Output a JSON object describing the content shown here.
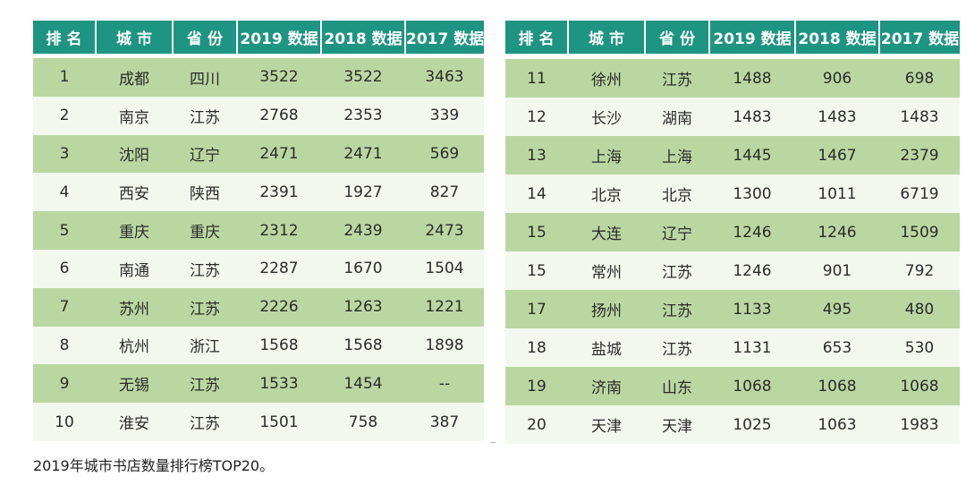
{
  "headers": [
    "排 名",
    "城 市",
    "省 份",
    "2019 数据",
    "2018 数据",
    "2017 数据"
  ],
  "left_rows": [
    [
      "1",
      "成都",
      "四川",
      "3522",
      "3522",
      "3463"
    ],
    [
      "2",
      "南京",
      "江苏",
      "2768",
      "2353",
      "339"
    ],
    [
      "3",
      "沈阳",
      "辽宁",
      "2471",
      "2471",
      "569"
    ],
    [
      "4",
      "西安",
      "陕西",
      "2391",
      "1927",
      "827"
    ],
    [
      "5",
      "重庆",
      "重庆",
      "2312",
      "2439",
      "2473"
    ],
    [
      "6",
      "南通",
      "江苏",
      "2287",
      "1670",
      "1504"
    ],
    [
      "7",
      "苏州",
      "江苏",
      "2226",
      "1263",
      "1221"
    ],
    [
      "8",
      "杭州",
      "浙江",
      "1568",
      "1568",
      "1898"
    ],
    [
      "9",
      "无锡",
      "江苏",
      "1533",
      "1454",
      "--"
    ],
    [
      "10",
      "淮安",
      "江苏",
      "1501",
      "758",
      "387"
    ]
  ],
  "right_rows": [
    [
      "11",
      "徐州",
      "江苏",
      "1488",
      "906",
      "698"
    ],
    [
      "12",
      "长沙",
      "湖南",
      "1483",
      "1483",
      "1483"
    ],
    [
      "13",
      "上海",
      "上海",
      "1445",
      "1467",
      "2379"
    ],
    [
      "14",
      "北京",
      "北京",
      "1300",
      "1011",
      "6719"
    ],
    [
      "15",
      "大连",
      "辽宁",
      "1246",
      "1246",
      "1509"
    ],
    [
      "15",
      "常州",
      "江苏",
      "1246",
      "901",
      "792"
    ],
    [
      "17",
      "扬州",
      "江苏",
      "1133",
      "495",
      "480"
    ],
    [
      "18",
      "盐城",
      "江苏",
      "1131",
      "653",
      "530"
    ],
    [
      "19",
      "济南",
      "山东",
      "1068",
      "1068",
      "1068"
    ],
    [
      "20",
      "天津",
      "天津",
      "1025",
      "1063",
      "1983"
    ]
  ],
  "caption": "2019年城市书店数量排行榜TOP20。"
}
